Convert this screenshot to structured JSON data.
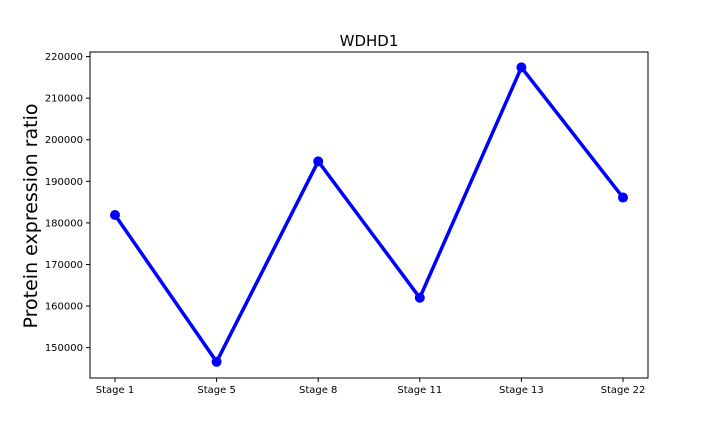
{
  "chart_data": {
    "type": "line",
    "title": "WDHD1",
    "xlabel": "",
    "ylabel": "Protein expression ratio",
    "categories": [
      "Stage 1",
      "Stage 5",
      "Stage 8",
      "Stage 11",
      "Stage 13",
      "Stage 22"
    ],
    "series": [
      {
        "values": [
          181900,
          146600,
          194800,
          162000,
          217400,
          186100
        ]
      }
    ],
    "ylim": [
      142700,
      221100
    ],
    "yticks": [
      150000,
      160000,
      170000,
      180000,
      190000,
      200000,
      210000,
      220000
    ],
    "ytick_labels": [
      "150000",
      "160000",
      "170000",
      "180000",
      "190000",
      "200000",
      "210000",
      "220000"
    ],
    "grid": false,
    "line_color": "#0000ff",
    "marker": "circle"
  }
}
